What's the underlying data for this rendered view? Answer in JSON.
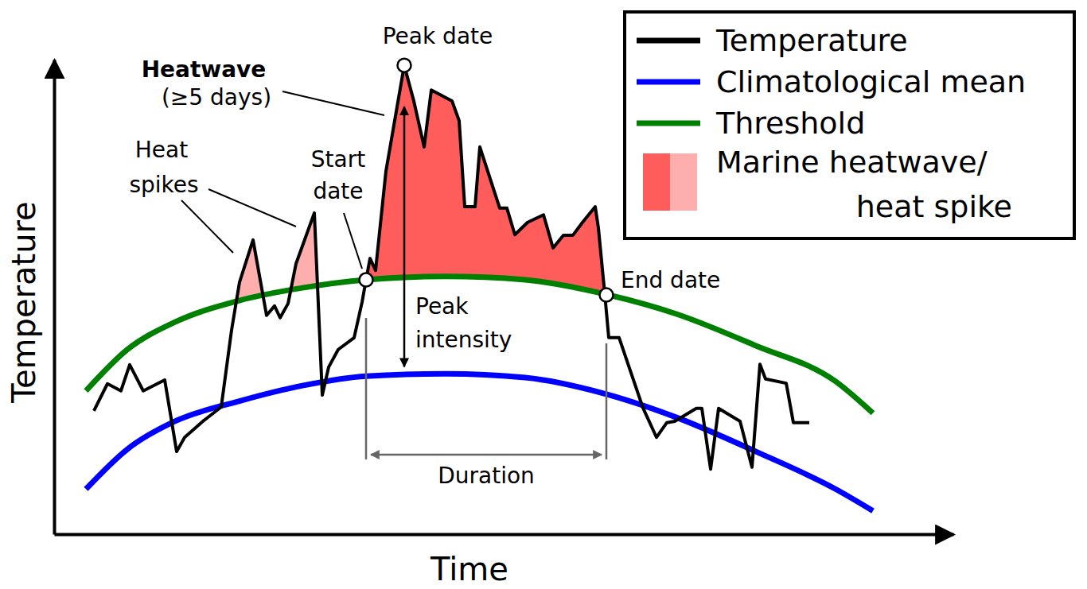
{
  "chart_data": {
    "type": "line",
    "x_label": "Time",
    "y_label": "Temperature",
    "xlim": [
      0,
      113
    ],
    "ylim": [
      0,
      100
    ],
    "tick_labels": false,
    "legend": "upper right",
    "series": [
      {
        "name": "Temperature",
        "color": "#000000",
        "line_style": "solid",
        "x": [
          5.0,
          6.7,
          8.4,
          9.5,
          11.2,
          13.9,
          15.4,
          16.4,
          18.7,
          21.0,
          22.3,
          23.3,
          25.0,
          26.7,
          27.7,
          28.4,
          29.4,
          30.4,
          32.7,
          33.7,
          34.5,
          35.7,
          37.7,
          38.7,
          39.2,
          39.7,
          40.4,
          41.7,
          44.0,
          45.2,
          46.5,
          47.4,
          50.0,
          50.9,
          51.6,
          52.9,
          53.5,
          56.0,
          56.9,
          57.9,
          59.5,
          61.5,
          62.7,
          64.0,
          65.2,
          66.4,
          68.0,
          68.4,
          69.2,
          69.7,
          71.0,
          74.0,
          75.7,
          77.0,
          78.0,
          80.7,
          81.4,
          82.5,
          83.5,
          86.2,
          87.7,
          88.7,
          89.4,
          92.0,
          92.9,
          94.9
        ],
        "values": [
          26.0,
          31.7,
          30.2,
          35.7,
          30.2,
          32.5,
          17.4,
          20.4,
          23.8,
          26.8,
          43.0,
          53.1,
          62.0,
          46.1,
          48.1,
          45.6,
          48.6,
          57.0,
          67.7,
          29.3,
          35.2,
          38.9,
          41.4,
          48.9,
          53.6,
          58.1,
          55.6,
          76.5,
          98.8,
          91.3,
          81.6,
          93.6,
          91.3,
          87.1,
          69.0,
          69.0,
          81.6,
          68.7,
          68.7,
          63.1,
          65.7,
          67.3,
          60.3,
          63.0,
          63.0,
          65.7,
          69.0,
          64.5,
          50.6,
          41.4,
          41.4,
          26.6,
          20.4,
          23.5,
          23.8,
          26.5,
          26.5,
          13.7,
          26.5,
          23.8,
          14.1,
          35.8,
          32.7,
          31.8,
          23.5,
          23.5
        ]
      },
      {
        "name": "Climatological mean",
        "color": "#0000ff",
        "line_style": "smooth",
        "x": [
          4.0,
          9.2,
          15.2,
          23.2,
          31.2,
          39.2,
          49.2,
          59.2,
          69.2,
          78.2,
          88.2,
          98.2,
          102.9
        ],
        "values": [
          9.5,
          17.9,
          23.8,
          28.0,
          31.3,
          33.3,
          33.8,
          33.0,
          29.6,
          24.6,
          17.4,
          9.5,
          4.9
        ]
      },
      {
        "name": "Threshold",
        "color": "#008000",
        "line_style": "smooth",
        "x": [
          4.0,
          9.2,
          15.2,
          23.2,
          31.2,
          39.2,
          49.2,
          59.2,
          69.2,
          78.2,
          88.2,
          98.2,
          102.9
        ],
        "values": [
          30.2,
          38.9,
          44.7,
          49.2,
          51.9,
          53.6,
          54.3,
          53.6,
          50.6,
          46.4,
          39.7,
          32.2,
          25.5
        ]
      }
    ],
    "fill": {
      "name": [
        "Marine heatwave/",
        "heat spike"
      ],
      "colors": [
        "#ff5c5c",
        "#ffaeae"
      ]
    },
    "events": {
      "peak": {
        "label": [
          "Peak date"
        ],
        "x": 44.0,
        "y": 98.8
      },
      "start": {
        "label": [
          "Start",
          "date"
        ],
        "x": 39.2,
        "y": 53.6
      },
      "end": {
        "label": [
          "End date"
        ],
        "x": 69.4,
        "y": 50.4
      },
      "heatwave": {
        "label": [
          "Heatwave",
          "(≥5 days)"
        ]
      },
      "heat_spikes": {
        "label": [
          "Heat",
          "spikes"
        ]
      },
      "peak_intensity": {
        "label": [
          "Peak",
          "intensity"
        ],
        "y0": 33.6
      },
      "duration": {
        "label": [
          "Duration"
        ]
      }
    }
  }
}
